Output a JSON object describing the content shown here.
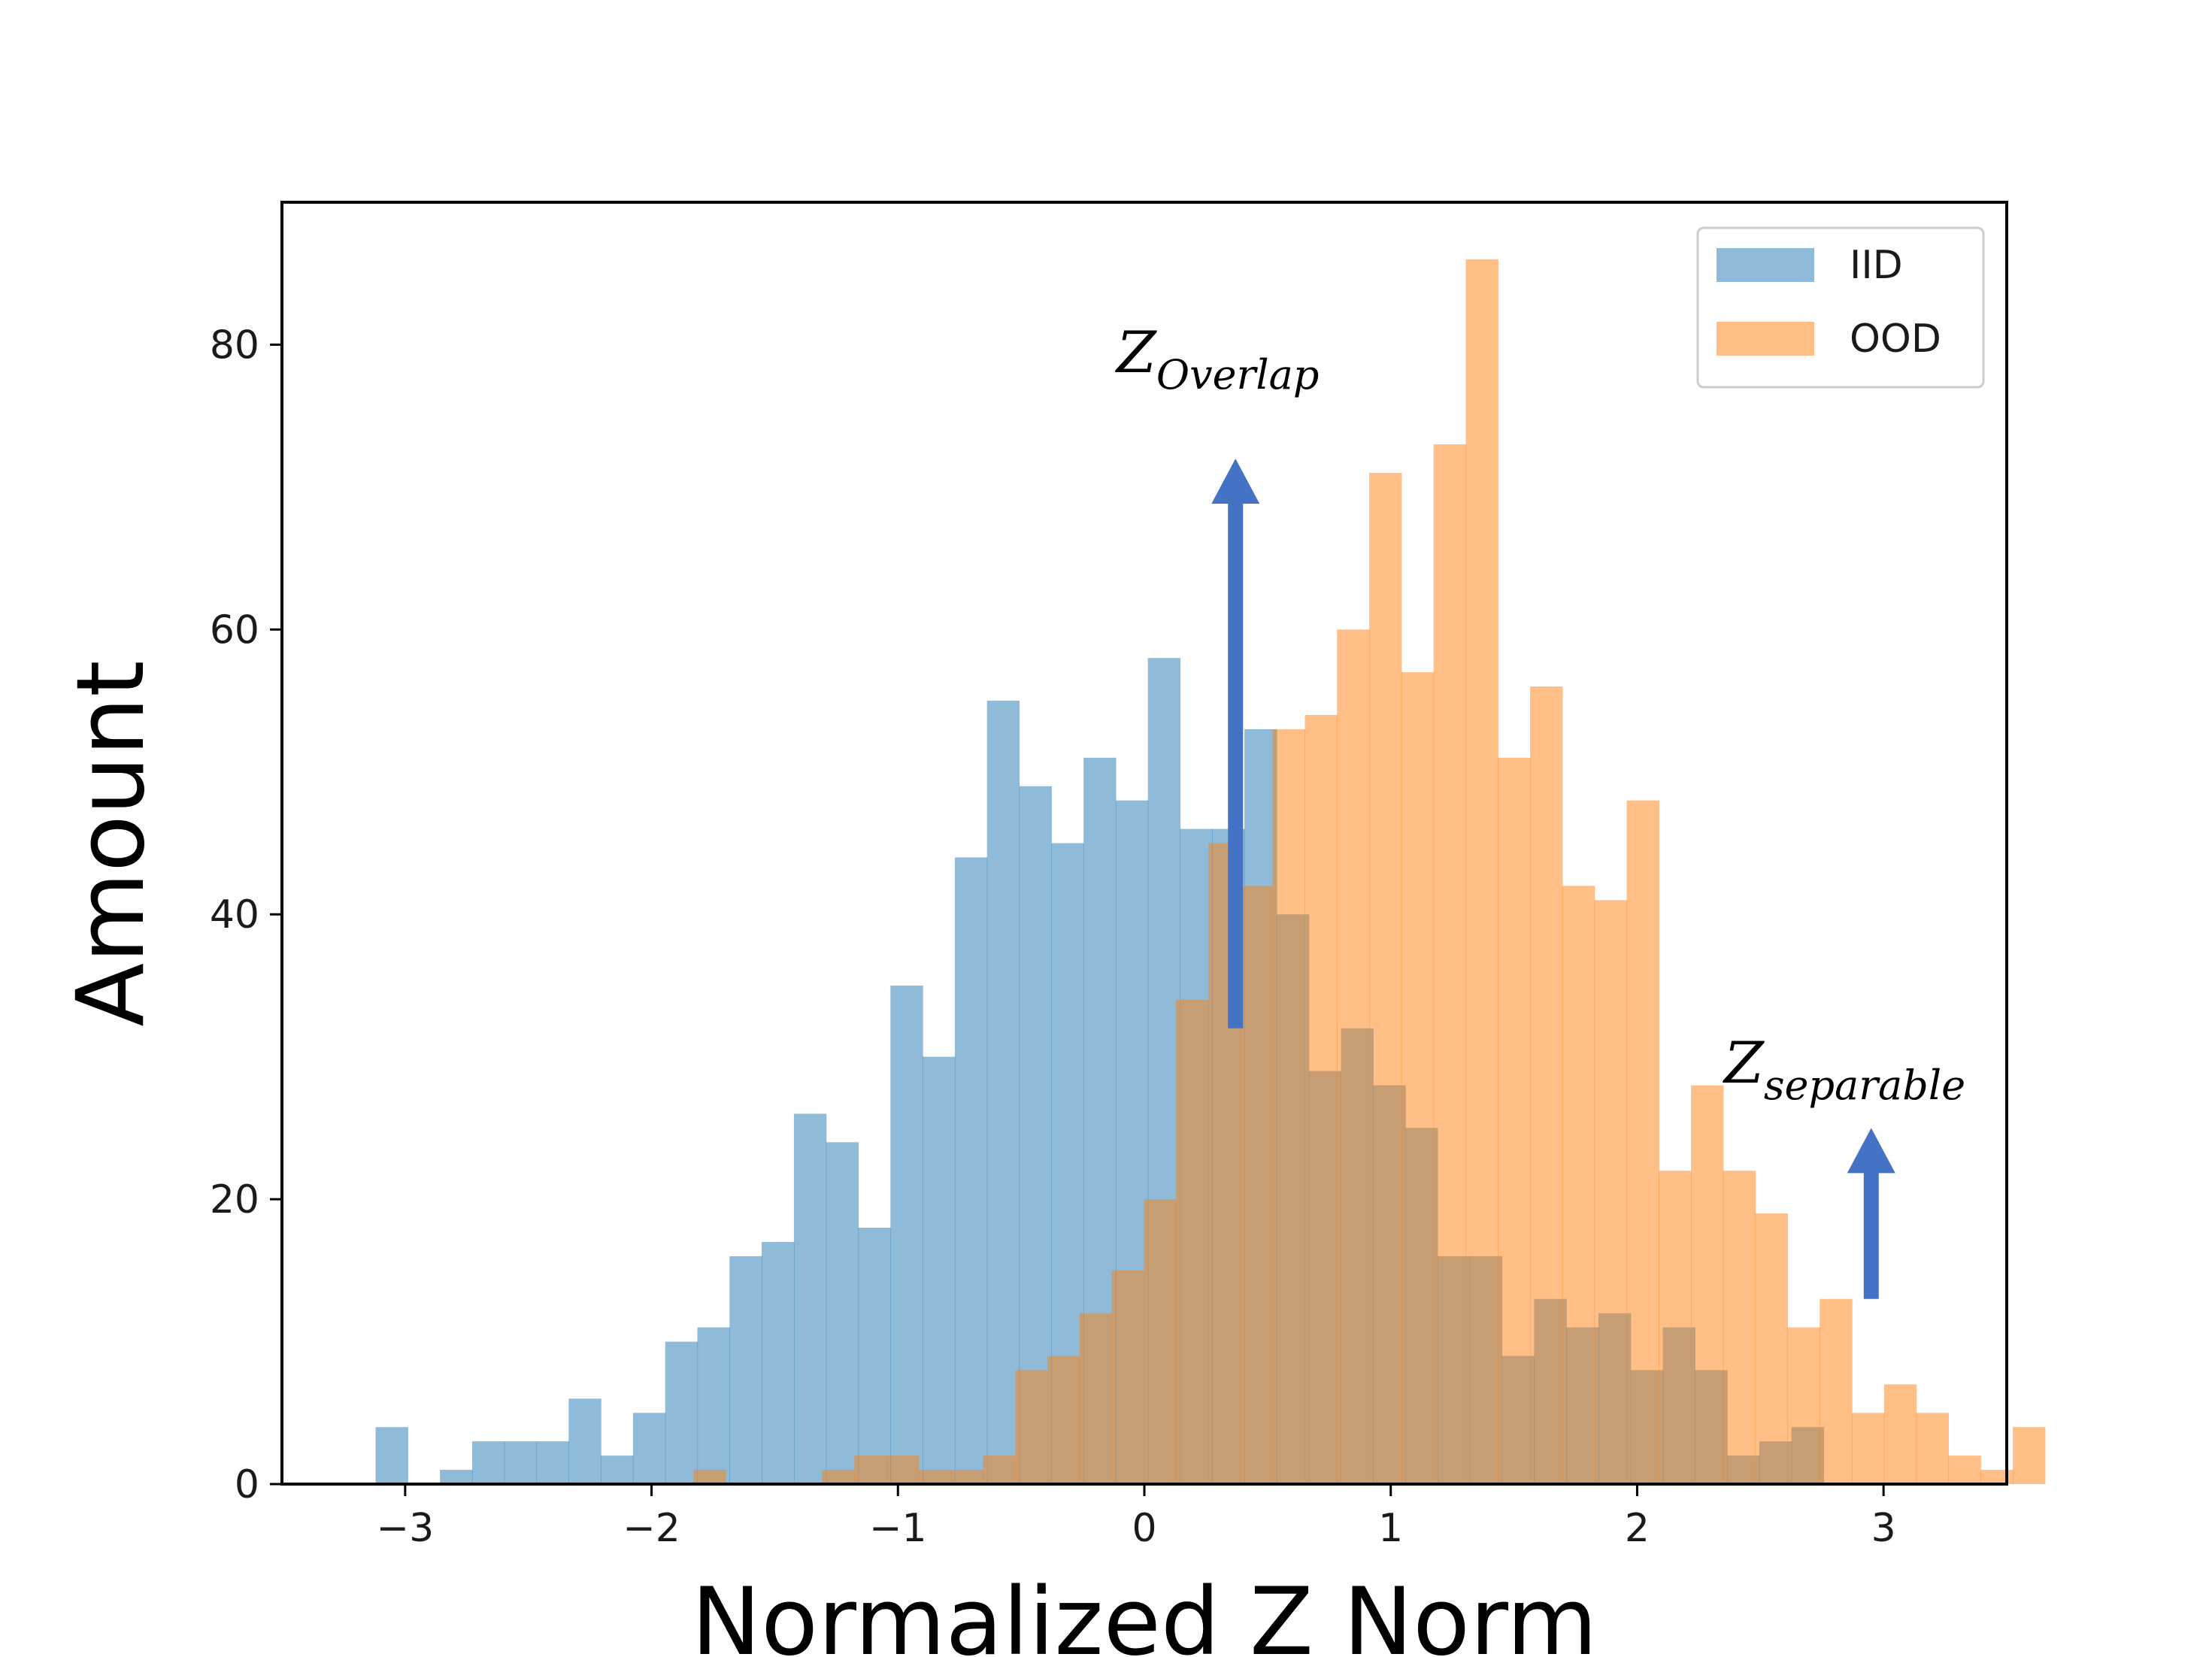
{
  "chart_data": {
    "type": "histogram",
    "xlabel": "Normalized Z Norm",
    "ylabel": "Amount",
    "xlim": [
      -3.5,
      3.5
    ],
    "ylim": [
      0,
      90
    ],
    "x_ticks": [
      -3,
      -2,
      -1,
      0,
      1,
      2,
      3
    ],
    "x_tick_labels": [
      "−3",
      "−2",
      "−1",
      "0",
      "1",
      "2",
      "3"
    ],
    "y_ticks": [
      0,
      20,
      40,
      60,
      80
    ],
    "y_tick_labels": [
      "0",
      "20",
      "40",
      "60",
      "80"
    ],
    "legend_position": "top-right",
    "series": [
      {
        "name": "IID",
        "color": "#1f77b4",
        "opacity": 0.5,
        "bin_start": -3.12,
        "bin_width": 0.1306,
        "counts": [
          4,
          0,
          1,
          3,
          3,
          3,
          6,
          2,
          5,
          10,
          11,
          16,
          17,
          26,
          24,
          18,
          35,
          30,
          44,
          55,
          49,
          45,
          51,
          48,
          58,
          46,
          46,
          53,
          40,
          29,
          32,
          28,
          25,
          16,
          16,
          9,
          13,
          11,
          12,
          8,
          11,
          8,
          2,
          3,
          4
        ]
      },
      {
        "name": "OOD",
        "color": "#ff7f0e",
        "opacity": 0.5,
        "bin_start": -1.83,
        "bin_width": 0.1306,
        "counts": [
          1,
          0,
          0,
          0,
          1,
          2,
          2,
          1,
          1,
          2,
          8,
          9,
          12,
          15,
          20,
          34,
          45,
          42,
          53,
          54,
          60,
          71,
          57,
          73,
          86,
          51,
          56,
          42,
          41,
          48,
          22,
          28,
          22,
          19,
          11,
          13,
          5,
          7,
          5,
          2,
          1,
          4
        ]
      }
    ],
    "annotations": [
      {
        "text_main": "Z",
        "text_sub": "Overlap",
        "x": 0.37,
        "arrow_from_y": 32,
        "arrow_to_y": 72,
        "color": "#4472c4"
      },
      {
        "text_main": "Z",
        "text_sub": "separable",
        "x": 2.95,
        "arrow_from_y": 13,
        "arrow_to_y": 25,
        "color": "#4472c4"
      }
    ]
  }
}
